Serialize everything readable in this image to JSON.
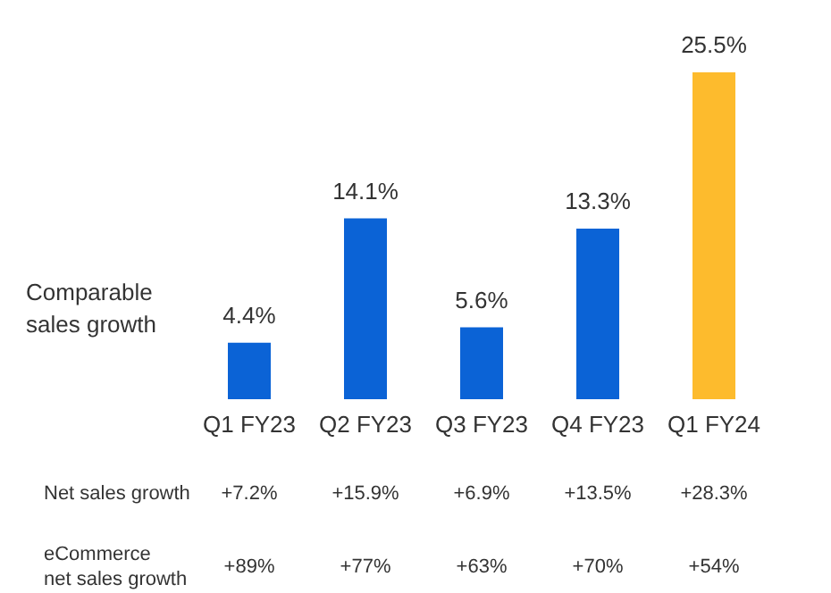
{
  "chart_data": {
    "type": "bar",
    "ylabel": "Comparable\nsales growth",
    "categories": [
      "Q1 FY23",
      "Q2 FY23",
      "Q3 FY23",
      "Q4 FY23",
      "Q1 FY24"
    ],
    "values": [
      4.4,
      14.1,
      5.6,
      13.3,
      25.5
    ],
    "colors": [
      "#0b63d6",
      "#0b63d6",
      "#0b63d6",
      "#0b63d6",
      "#fdbb2d"
    ],
    "value_labels": [
      "4.4%",
      "14.1%",
      "5.6%",
      "13.3%",
      "25.5%"
    ],
    "annotations": [
      "Net sales growth",
      "+7.2%",
      "+15.9%",
      "+6.9%",
      "+13.5%",
      "+28.3%",
      "eCommerce\nnet sales growth",
      "+89%",
      "+77%",
      "+63%",
      "+70%",
      "+54%"
    ]
  }
}
